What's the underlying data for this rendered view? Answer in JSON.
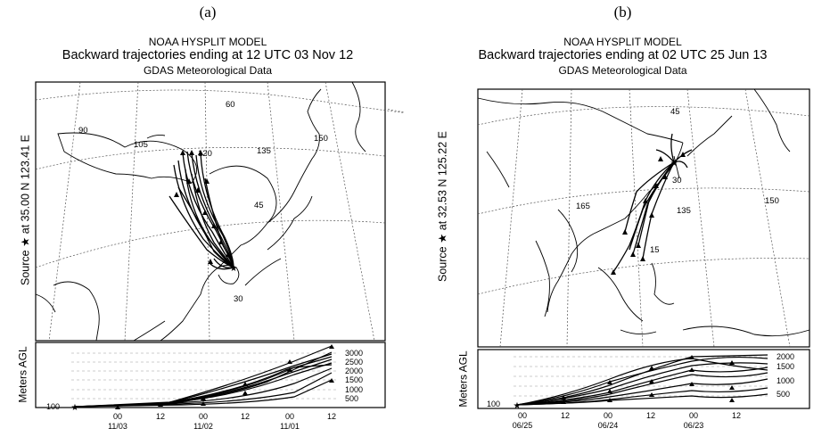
{
  "panels": [
    {
      "label": "(a)",
      "title1": "NOAA HYSPLIT MODEL",
      "title2": "Backward trajectories ending at 12 UTC 03 Nov 12",
      "title3": "GDAS Meteorological Data",
      "source": "Source ★ at 35.00 N 123.41 E",
      "map_labels": [
        "60",
        "90",
        "105",
        "120",
        "135",
        "150",
        "45",
        "30"
      ],
      "vertical_axis_label": "Meters AGL",
      "y_ticks": [
        "3000",
        "2500",
        "2000",
        "1500",
        "1000",
        "500"
      ],
      "start_level": "100",
      "time_ticks": [
        "00",
        "12",
        "00",
        "12",
        "00",
        "12"
      ],
      "date_labels": [
        "11/03",
        "11/02",
        "11/01"
      ]
    },
    {
      "label": "(b)",
      "title1": "NOAA HYSPLIT MODEL",
      "title2": "Backward trajectories ending at 02 UTC 25 Jun 13",
      "title3": "GDAS Meteorological Data",
      "source": "Source ★ at 32.53 N 125.22 E",
      "map_labels": [
        "45",
        "30",
        "165",
        "135",
        "150",
        "15"
      ],
      "vertical_axis_label": "Meters AGL",
      "y_ticks": [
        "2000",
        "1500",
        "1000",
        "500"
      ],
      "start_level": "100",
      "time_ticks": [
        "00",
        "12",
        "00",
        "12",
        "00",
        "12"
      ],
      "date_labels": [
        "06/25",
        "06/24",
        "06/23"
      ]
    }
  ]
}
